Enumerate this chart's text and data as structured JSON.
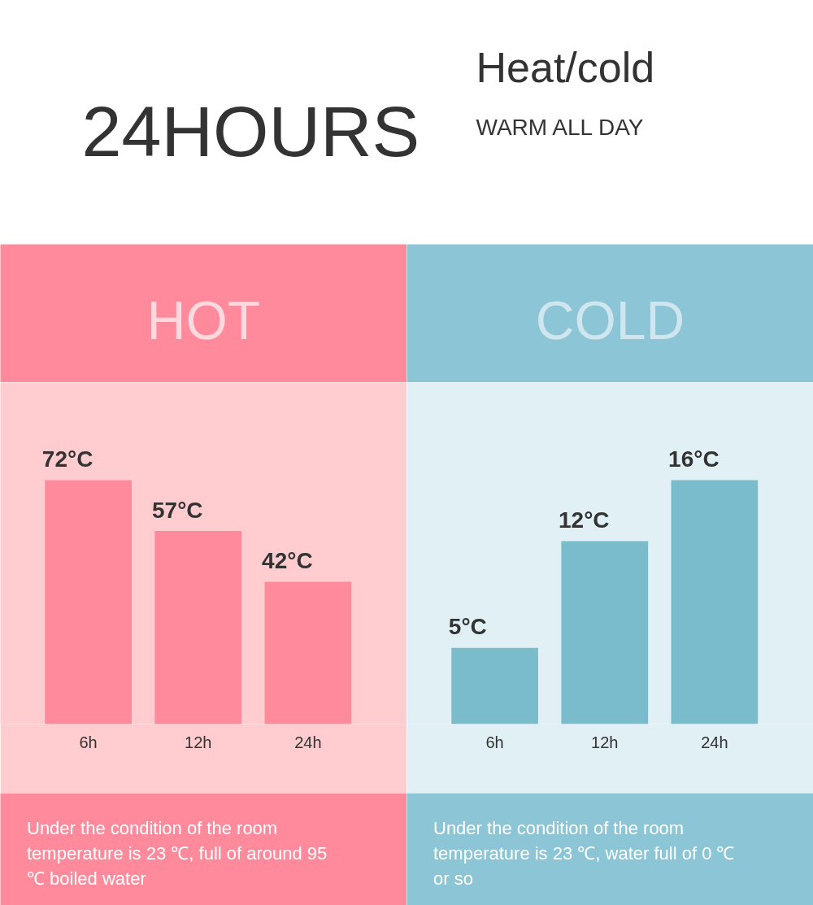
{
  "chart_data": [
    {
      "type": "other",
      "title": "24HOURS",
      "subtitle": "Heat/cold",
      "annotations": [
        "WARM ALL DAY"
      ]
    },
    {
      "type": "bar",
      "title": "HOT",
      "categories": [
        "6h",
        "12h",
        "24h"
      ],
      "values": [
        72,
        57,
        42
      ],
      "color": "#ff8a9c",
      "value_labels": [
        "72°C",
        "57°C",
        "42°C"
      ],
      "annotations": [
        "Under the condition of the room temperature is 23 ℃, full of around 95 ℃ boiled water"
      ]
    },
    {
      "type": "bar",
      "title": "COLD",
      "categories": [
        "6h",
        "12h",
        "24h"
      ],
      "values": [
        5,
        12,
        16
      ],
      "color": "#7bbccc",
      "value_labels": [
        "5°C",
        "12°C",
        "16°C"
      ],
      "annotations": [
        "Under the condition of the room temperature is 23 ℃, water full of 0 ℃ or so"
      ]
    }
  ]
}
